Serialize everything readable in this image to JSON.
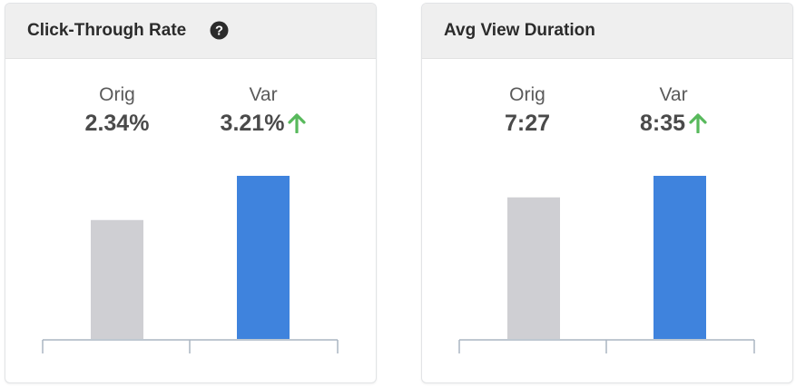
{
  "colors": {
    "orig_bar": "#cfcfd3",
    "var_bar": "#3f83dd",
    "axis": "#aab6c2",
    "up_arrow": "#58b95c"
  },
  "cards": [
    {
      "title": "Click-Through Rate",
      "help_icon": "question-circle-icon",
      "orig_label": "Orig",
      "orig_value": "2.34%",
      "var_label": "Var",
      "var_value": "3.21%",
      "trend_icon": "arrow-up-icon"
    },
    {
      "title": "Avg View Duration",
      "orig_label": "Orig",
      "orig_value": "7:27",
      "var_label": "Var",
      "var_value": "8:35",
      "trend_icon": "arrow-up-icon"
    }
  ],
  "chart_data": [
    {
      "type": "bar",
      "title": "Click-Through Rate",
      "categories": [
        "Orig",
        "Var"
      ],
      "values": [
        2.34,
        3.21
      ],
      "ylim": [
        0,
        3.21
      ]
    },
    {
      "type": "bar",
      "title": "Avg View Duration",
      "categories": [
        "Orig",
        "Var"
      ],
      "values": [
        "7:27",
        "8:35"
      ],
      "values_seconds": [
        447,
        515
      ],
      "ylim": [
        0,
        515
      ]
    }
  ]
}
